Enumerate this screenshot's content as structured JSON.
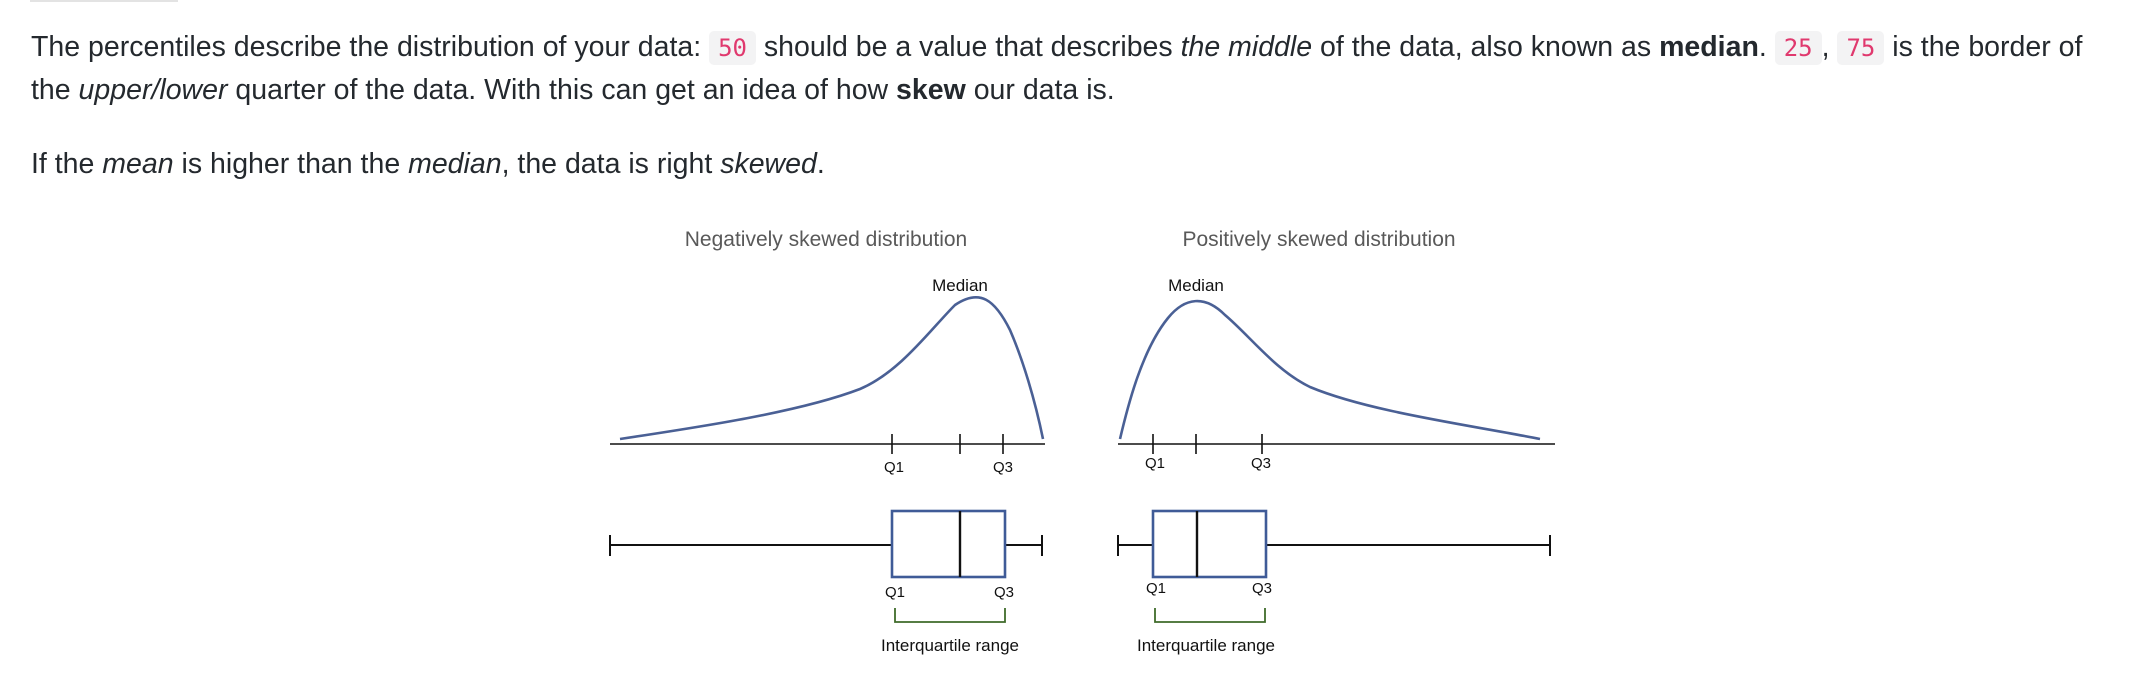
{
  "text": {
    "p1": {
      "s1": "The percentiles describe the distribution of your data:",
      "c50": "50",
      "s2": "should be a value that describes",
      "em_middle": "the middle",
      "s3": "of the data, also known as",
      "b_median": "median",
      "s4": ".",
      "c25": "25",
      "comma": ",",
      "c75": "75",
      "s5": "is the border of the",
      "em_upperlower": "upper/lower",
      "s6": "quarter of the data. With this can get an idea of how",
      "b_skew": "skew",
      "s7": "our data is."
    },
    "p2": {
      "s1": "If the",
      "em_mean": "mean",
      "s2": "is higher than the",
      "em_median": "median",
      "s3": ", the data is right",
      "em_skewed": "skewed",
      "s4": "."
    }
  },
  "figure": {
    "left": {
      "title": "Negatively skewed distribution",
      "median_label": "Median",
      "q1_label": "Q1",
      "q3_label": "Q3",
      "iqr_label": "Interquartile range"
    },
    "right": {
      "title": "Positively skewed distribution",
      "median_label": "Median",
      "q1_label": "Q1",
      "q3_label": "Q3",
      "iqr_label": "Interquartile range"
    },
    "colors": {
      "curve": "#4a6095",
      "box": "#3f5b97",
      "bracket": "#3f6b2a",
      "axis": "#111111"
    }
  }
}
